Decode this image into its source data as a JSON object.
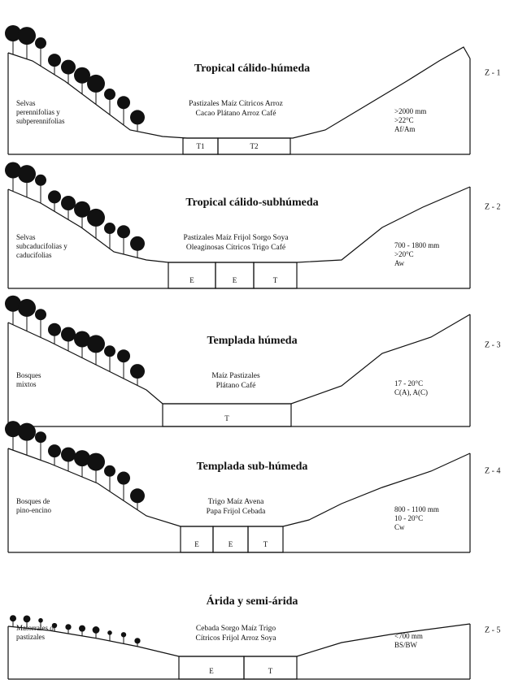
{
  "panels": [
    {
      "title": "Tropical cálido-húmeda",
      "vegetation": [
        "Selvas",
        "perennifolias y",
        "subperennifolias"
      ],
      "crops": [
        "Pastizales Maíz Cítricos Arroz",
        "Cacao Plátano Arroz Café"
      ],
      "climate": [
        ">2000 mm",
        ">22°C",
        "Af/Am"
      ],
      "zone": "Z - 1",
      "boxes": [
        "T1",
        "T2"
      ]
    },
    {
      "title": "Tropical cálido-subhúmeda",
      "vegetation": [
        "Selvas",
        "subcaducifolias y",
        "caducifolias"
      ],
      "crops": [
        "Pastizales Maíz Frijol Sorgo Soya",
        "Oleaginosas Cítricos Trigo Café"
      ],
      "climate": [
        "700 - 1800 mm",
        ">20°C",
        "Aw"
      ],
      "zone": "Z - 2",
      "boxes": [
        "E",
        "E",
        "T"
      ]
    },
    {
      "title": "Templada húmeda",
      "vegetation": [
        "Bosques",
        "mixtos"
      ],
      "crops": [
        "Maíz Pastizales",
        "Plátano Café"
      ],
      "climate": [
        "17 - 20°C",
        "C(A), A(C)"
      ],
      "zone": "Z - 3",
      "boxes": [
        "T"
      ]
    },
    {
      "title": "Templada sub-húmeda",
      "vegetation": [
        "Bosques de",
        "pino-encino"
      ],
      "crops": [
        "Trigo Maíz Avena",
        "Papa Frijol Cebada"
      ],
      "climate": [
        "800 - 1100 mm",
        "10 - 20°C",
        "Cw"
      ],
      "zone": "Z - 4",
      "boxes": [
        "E",
        "E",
        "T"
      ]
    },
    {
      "title": "Árida y semi-árida",
      "vegetation": [
        "Matorrales o",
        "pastizales"
      ],
      "crops": [
        "Cebada Sorgo Maíz Trigo",
        "Cítricos Frijol Arroz Soya"
      ],
      "climate": [
        "<700 mm",
        "BS/BW"
      ],
      "zone": "Z - 5",
      "boxes": [
        "E",
        "T"
      ]
    }
  ]
}
